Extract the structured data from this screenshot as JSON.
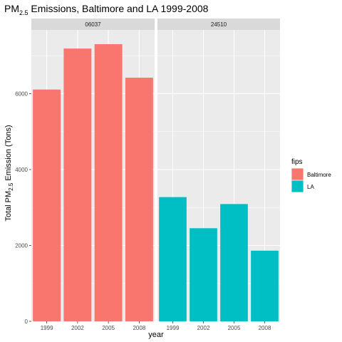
{
  "chart_data": {
    "type": "bar",
    "title": {
      "main": "PM",
      "subscript": "2.5",
      "rest": " Emissions, Baltimore and LA 1999-2008"
    },
    "xlabel": "year",
    "ylabel": {
      "main": "Total PM",
      "subscript": "2.5",
      "rest": " Emission (Tons)"
    },
    "categories": [
      "1999",
      "2002",
      "2005",
      "2008"
    ],
    "ylim": [
      0,
      7680
    ],
    "yticks": [
      0,
      2000,
      4000,
      6000
    ],
    "facets": [
      {
        "label": "06037",
        "series": "Baltimore",
        "values": [
          6109,
          7189,
          7304,
          6421
        ]
      },
      {
        "label": "24510",
        "series": "LA",
        "values": [
          3274,
          2454,
          3091,
          1862
        ]
      }
    ],
    "legend": {
      "title": "fips",
      "position": "right",
      "entries": [
        {
          "label": "Baltimore",
          "color": "#F8766D"
        },
        {
          "label": "LA",
          "color": "#00BFC4"
        }
      ]
    },
    "colors": {
      "panel": "#EBEBEB",
      "grid": "#FFFFFF",
      "strip": "#D9D9D9"
    }
  }
}
